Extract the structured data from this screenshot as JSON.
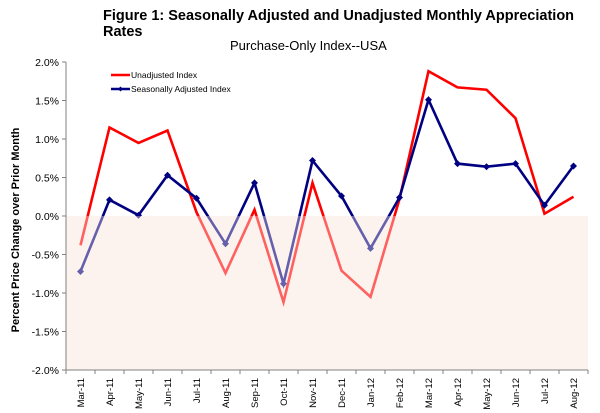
{
  "chart_data": {
    "type": "line",
    "title": "Figure 1: Seasonally Adjusted and Unadjusted Monthly Appreciation Rates",
    "subtitle": "Purchase-Only Index--USA",
    "xlabel": "",
    "ylabel": "Percent Price Change over Prior Month",
    "ylim": [
      -2.0,
      2.0
    ],
    "yticks": [
      2.0,
      1.5,
      1.0,
      0.5,
      0.0,
      -0.5,
      -1.0,
      -1.5,
      -2.0
    ],
    "ytick_labels": [
      "2.0%",
      "1.5%",
      "1.0%",
      "0.5%",
      "0.0%",
      "-0.5%",
      "-1.0%",
      "-1.5%",
      "-2.0%"
    ],
    "categories": [
      "Mar-11",
      "Apr-11",
      "May-11",
      "Jun-11",
      "Jul-11",
      "Aug-11",
      "Sep-11",
      "Oct-11",
      "Nov-11",
      "Dec-11",
      "Jan-12",
      "Feb-12",
      "Mar-12",
      "Apr-12",
      "May-12",
      "Jun-12",
      "Jul-12",
      "Aug-12"
    ],
    "series": [
      {
        "name": "Unadjusted Index",
        "color": "#ff0000",
        "marker": "none",
        "values": [
          -0.38,
          1.15,
          0.95,
          1.11,
          0.05,
          -0.74,
          0.08,
          -1.12,
          0.43,
          -0.71,
          -1.05,
          0.22,
          1.88,
          1.67,
          1.64,
          1.27,
          0.03,
          0.25
        ]
      },
      {
        "name": "Seasonally Adjusted Index",
        "color": "#000080",
        "marker": "diamond",
        "values": [
          -0.72,
          0.21,
          0.01,
          0.53,
          0.23,
          -0.36,
          0.43,
          -0.88,
          0.72,
          0.26,
          -0.42,
          0.24,
          1.51,
          0.68,
          0.64,
          0.68,
          0.14,
          0.65
        ]
      }
    ],
    "negative_region_color": "#fdf3ee",
    "legend": "top-left",
    "grid": false
  }
}
